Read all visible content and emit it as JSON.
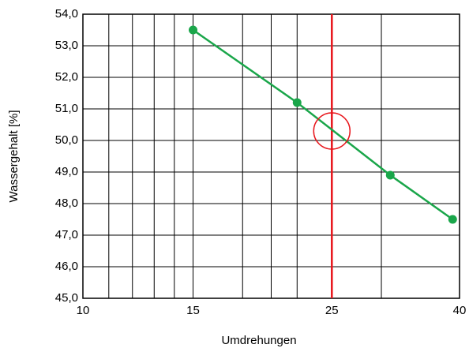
{
  "chart_data": {
    "type": "line",
    "xscale": "log",
    "xlabel": "Umdrehungen",
    "ylabel": "Wassergehalt [%]",
    "x": [
      15,
      22,
      31,
      39
    ],
    "series": [
      {
        "color": "#1aa64a",
        "values": [
          53.5,
          51.2,
          48.9,
          47.5
        ]
      }
    ],
    "xlim": [
      10,
      40
    ],
    "xticks": [
      10,
      15,
      25,
      40
    ],
    "xminor": [
      11,
      12,
      13,
      14,
      18,
      20,
      22,
      30
    ],
    "ylim": [
      45,
      54
    ],
    "yticks": [
      {
        "value": 45,
        "label": "45,0"
      },
      {
        "value": 46,
        "label": "46,0"
      },
      {
        "value": 47,
        "label": "47,0"
      },
      {
        "value": 48,
        "label": "48,0"
      },
      {
        "value": 49,
        "label": "49,0"
      },
      {
        "value": 50,
        "label": "50,0"
      },
      {
        "value": 51,
        "label": "51,0"
      },
      {
        "value": 52,
        "label": "52,0"
      },
      {
        "value": 53,
        "label": "53,0"
      },
      {
        "value": 54,
        "label": "54,0"
      }
    ],
    "grid": true,
    "vline": {
      "x": 25,
      "color": "#e8151b"
    },
    "circle": {
      "x": 25,
      "y": 50.3,
      "color": "#e8151b"
    }
  }
}
